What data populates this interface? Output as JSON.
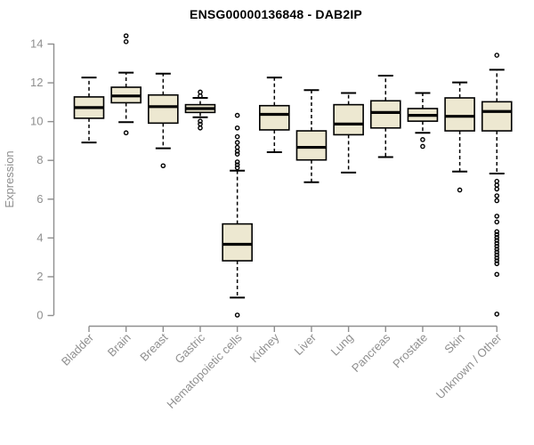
{
  "chart_data": {
    "type": "boxplot",
    "title": "ENSG00000136848 - DAB2IP",
    "ylabel": "Expression",
    "xlabel": "",
    "ylim": [
      0,
      14
    ],
    "yticks": [
      0,
      2,
      4,
      6,
      8,
      10,
      12,
      14
    ],
    "grid": false,
    "legend": "none",
    "colors": {
      "box_fill": "#EDE8D1",
      "box_stroke": "#000000",
      "median": "#000000",
      "whisker": "#000000",
      "outlier": "#000000",
      "axis": "#8F8F8F",
      "tick_label": "#8F8F8F",
      "title": "#000000"
    },
    "boxes": [
      {
        "category": "Bladder",
        "whisker_low": 8.9,
        "q1": 10.15,
        "median": 10.7,
        "q3": 11.25,
        "whisker_high": 12.25,
        "outliers": []
      },
      {
        "category": "Brain",
        "whisker_low": 9.95,
        "q1": 10.95,
        "median": 11.3,
        "q3": 11.75,
        "whisker_high": 12.5,
        "outliers": [
          14.4,
          14.1,
          9.4
        ]
      },
      {
        "category": "Breast",
        "whisker_low": 8.6,
        "q1": 9.9,
        "median": 10.75,
        "q3": 11.35,
        "whisker_high": 12.45,
        "outliers": [
          7.7
        ]
      },
      {
        "category": "Gastric",
        "whisker_low": 10.2,
        "q1": 10.45,
        "median": 10.65,
        "q3": 10.85,
        "whisker_high": 11.2,
        "outliers": [
          11.5,
          11.3,
          10.0,
          9.85,
          9.65
        ]
      },
      {
        "category": "Hematopoietic cells",
        "whisker_low": 0.9,
        "q1": 2.8,
        "median": 3.65,
        "q3": 4.7,
        "whisker_high": 7.45,
        "outliers": [
          10.3,
          9.65,
          9.2,
          8.9,
          8.65,
          8.45,
          8.3,
          7.9,
          7.75,
          7.6,
          0.0
        ]
      },
      {
        "category": "Kidney",
        "whisker_low": 8.4,
        "q1": 9.55,
        "median": 10.35,
        "q3": 10.8,
        "whisker_high": 12.25,
        "outliers": []
      },
      {
        "category": "Liver",
        "whisker_low": 6.85,
        "q1": 8.0,
        "median": 8.65,
        "q3": 9.5,
        "whisker_high": 11.6,
        "outliers": []
      },
      {
        "category": "Lung",
        "whisker_low": 7.35,
        "q1": 9.3,
        "median": 9.85,
        "q3": 10.85,
        "whisker_high": 11.45,
        "outliers": []
      },
      {
        "category": "Pancreas",
        "whisker_low": 8.15,
        "q1": 9.65,
        "median": 10.45,
        "q3": 11.05,
        "whisker_high": 12.35,
        "outliers": []
      },
      {
        "category": "Prostate",
        "whisker_low": 9.4,
        "q1": 10.0,
        "median": 10.3,
        "q3": 10.65,
        "whisker_high": 11.45,
        "outliers": [
          9.05,
          8.7
        ]
      },
      {
        "category": "Skin",
        "whisker_low": 7.4,
        "q1": 9.5,
        "median": 10.25,
        "q3": 11.2,
        "whisker_high": 12.0,
        "outliers": [
          6.45
        ]
      },
      {
        "category": "Unknown / Other",
        "whisker_low": 7.3,
        "q1": 9.5,
        "median": 10.5,
        "q3": 11.0,
        "whisker_high": 12.65,
        "outliers": [
          13.4,
          6.9,
          6.7,
          6.5,
          6.15,
          5.9,
          5.1,
          4.8,
          4.3,
          4.15,
          4.0,
          3.85,
          3.7,
          3.55,
          3.4,
          3.25,
          3.1,
          2.95,
          2.8,
          2.65,
          2.1,
          0.05
        ]
      }
    ]
  }
}
